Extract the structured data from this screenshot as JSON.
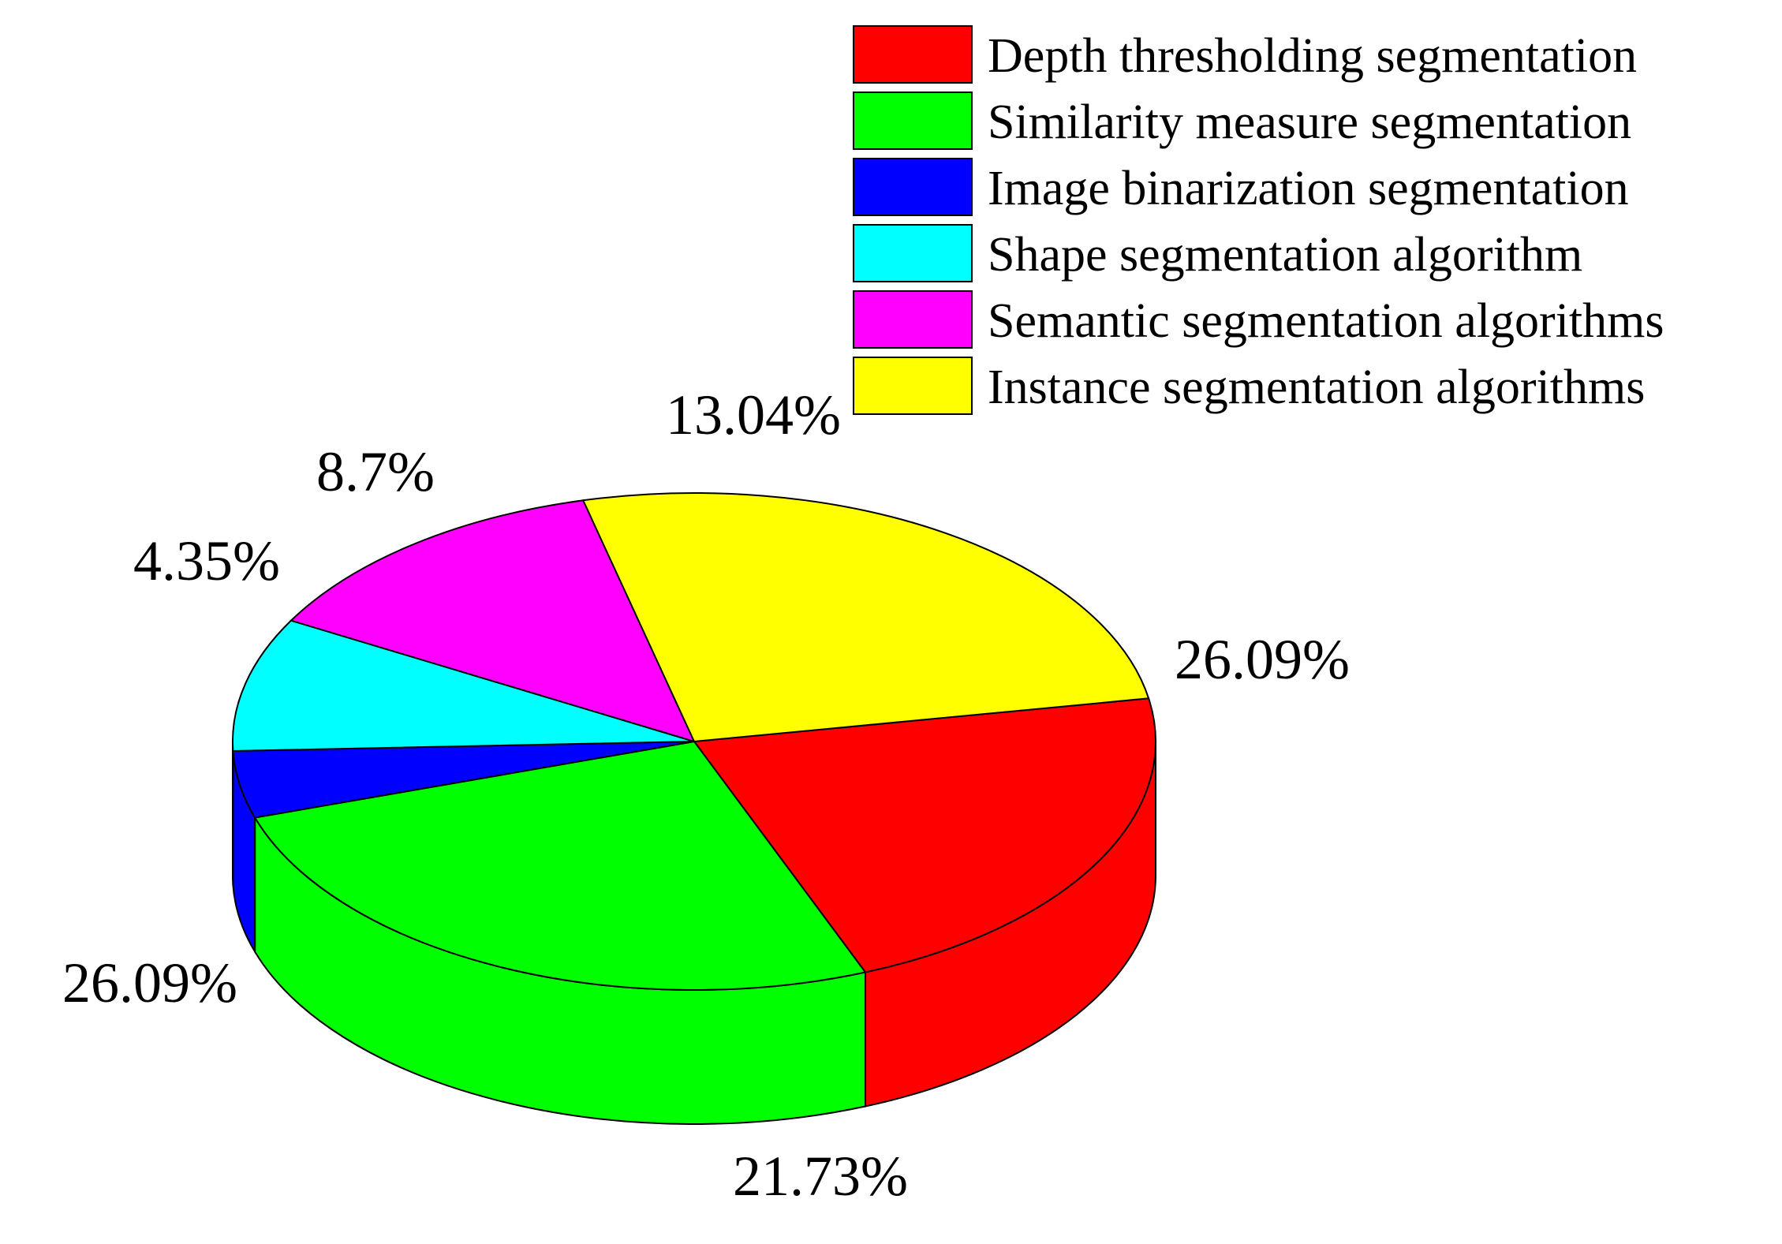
{
  "chart_data": {
    "type": "pie",
    "style": "3d",
    "legend_position": "top-right",
    "slices": [
      {
        "label": "Depth thresholding segmentation",
        "value": 21.73,
        "value_label": "21.73%",
        "color": "#FF0000"
      },
      {
        "label": "Similarity measure segmentation",
        "value": 26.09,
        "value_label": "26.09%",
        "color": "#00FF00"
      },
      {
        "label": "Image binarization segmentation",
        "value": 4.35,
        "value_label": "4.35%",
        "color": "#0000FF"
      },
      {
        "label": "Shape segmentation algorithm",
        "value": 8.7,
        "value_label": "8.7%",
        "color": "#00FFFF"
      },
      {
        "label": "Semantic segmentation algorithms",
        "value": 13.04,
        "value_label": "13.04%",
        "color": "#FF00FF"
      },
      {
        "label": "Instance segmentation algorithms",
        "value": 26.09,
        "value_label": "26.09%",
        "color": "#FFFF00"
      }
    ]
  }
}
